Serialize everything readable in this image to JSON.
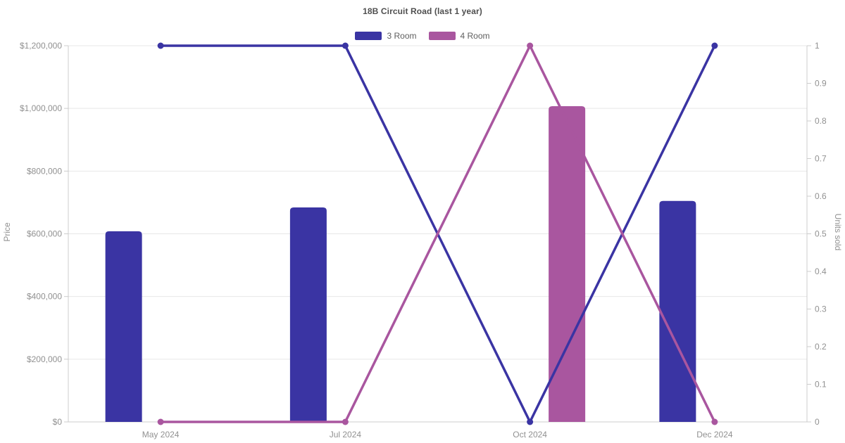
{
  "colors": {
    "blue": "#3a34a3",
    "purple": "#a9569f",
    "grid": "#e7e7e7",
    "axis": "#cccccc",
    "tick_text": "#919191",
    "title_text": "#4f4f4f",
    "legend_text": "#5f5f5f",
    "background": "#ffffff"
  },
  "chart_data": {
    "type": "combo-bar-line",
    "title": "18B Circuit Road (last 1 year)",
    "categories": [
      "May 2024",
      "Jul 2024",
      "Oct 2024",
      "Dec 2024"
    ],
    "legend": [
      {
        "label": "3 Room",
        "color": "#3a34a3"
      },
      {
        "label": "4 Room",
        "color": "#a9569f"
      }
    ],
    "legend_position": "top",
    "grid": true,
    "bar_series": [
      {
        "name": "3 Room",
        "color": "#3a34a3",
        "axis": "left",
        "values": [
          608000,
          684000,
          null,
          705000
        ]
      },
      {
        "name": "4 Room",
        "color": "#a9569f",
        "axis": "left",
        "values": [
          null,
          null,
          1007000,
          null
        ]
      }
    ],
    "line_series": [
      {
        "name": "3 Room",
        "color": "#3a34a3",
        "axis": "right",
        "values": [
          1,
          1,
          0,
          1
        ]
      },
      {
        "name": "4 Room",
        "color": "#a9569f",
        "axis": "right",
        "values": [
          0,
          0,
          1,
          0
        ]
      }
    ],
    "y_left": {
      "label": "Price",
      "min": 0,
      "max": 1200000,
      "ticks": [
        0,
        200000,
        400000,
        600000,
        800000,
        1000000,
        1200000
      ],
      "tick_labels": [
        "$0",
        "$200,000",
        "$400,000",
        "$600,000",
        "$800,000",
        "$1,000,000",
        "$1,200,000"
      ]
    },
    "y_right": {
      "label": "Units sold",
      "min": 0,
      "max": 1,
      "ticks": [
        0,
        0.1,
        0.2,
        0.3,
        0.4,
        0.5,
        0.6,
        0.7,
        0.8,
        0.9,
        1
      ],
      "tick_labels": [
        "0",
        "0.1",
        "0.2",
        "0.3",
        "0.4",
        "0.5",
        "0.6",
        "0.7",
        "0.8",
        "0.9",
        "1"
      ]
    }
  }
}
